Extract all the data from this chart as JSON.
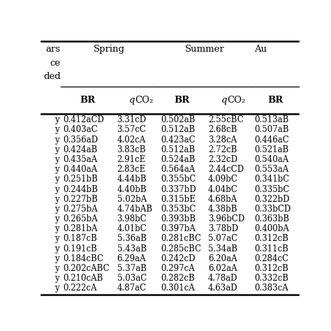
{
  "col0_label": "y",
  "header1_left_text": "ars\nce\nded",
  "header_spring": "Spring",
  "header_summer": "Summer",
  "header_autumn": "Au",
  "header2_col0": "",
  "header2_cols": [
    "BR",
    "qCO₂",
    "BR",
    "qCO₂",
    "BR"
  ],
  "spring_BR": [
    "0.412aCD",
    "0.403aC",
    "0.356aD",
    "0.424aB",
    "0.435aA",
    "0.440aA",
    "0.251bB",
    "0.244bB",
    "0.227bB",
    "0.275bA",
    "0.265bA",
    "0.281bA",
    "0.187cB",
    "0.191cB",
    "0.184cBC",
    "0.202cABC",
    "0.210cAB",
    "0.222cA"
  ],
  "spring_qCO2": [
    "3.31cD",
    "3.57cC",
    "4.02cA",
    "3.83cB",
    "2.91cE",
    "2.83cE",
    "4.44bB",
    "4.40bB",
    "5.02bA",
    "4.74bAB",
    "3.98bC",
    "4.01bC",
    "5.36aB",
    "5.43aB",
    "6.29aA",
    "5.37aB",
    "5.03aC",
    "4.87aC"
  ],
  "summer_BR": [
    "0.502aB",
    "0.512aB",
    "0.423aC",
    "0.512aB",
    "0.524aB",
    "0.564aA",
    "0.355bC",
    "0.337bD",
    "0.315bE",
    "0.353bC",
    "0.393bB",
    "0.397bA",
    "0.281cBC",
    "0.285cBC",
    "0.242cD",
    "0.297cA",
    "0.282cB",
    "0.301cA"
  ],
  "summer_qCO2": [
    "2.55cBC",
    "2.68cB",
    "3.28cA",
    "2.72cB",
    "2.32cD",
    "2.44cCD",
    "4.09bC",
    "4.04bC",
    "4.68bA",
    "4.38bB",
    "3.96bCD",
    "3.78bD",
    "5.07aC",
    "5.34aB",
    "6.20aA",
    "6.02aA",
    "4.78aD",
    "4.63aD"
  ],
  "autumn_BR": [
    "0.513aB",
    "0.507aB",
    "0.446aC",
    "0.521aB",
    "0.540aA",
    "0.553aA",
    "0.341bC",
    "0.335bC",
    "0.322bD",
    "0.33bCD",
    "0.363bB",
    "0.400bA",
    "0.312cB",
    "0.311cB",
    "0.284cC",
    "0.312cB",
    "0.332cB",
    "0.383cA"
  ],
  "font_size": 8.5,
  "header_font_size": 9.5,
  "background": "#f0f0f0"
}
